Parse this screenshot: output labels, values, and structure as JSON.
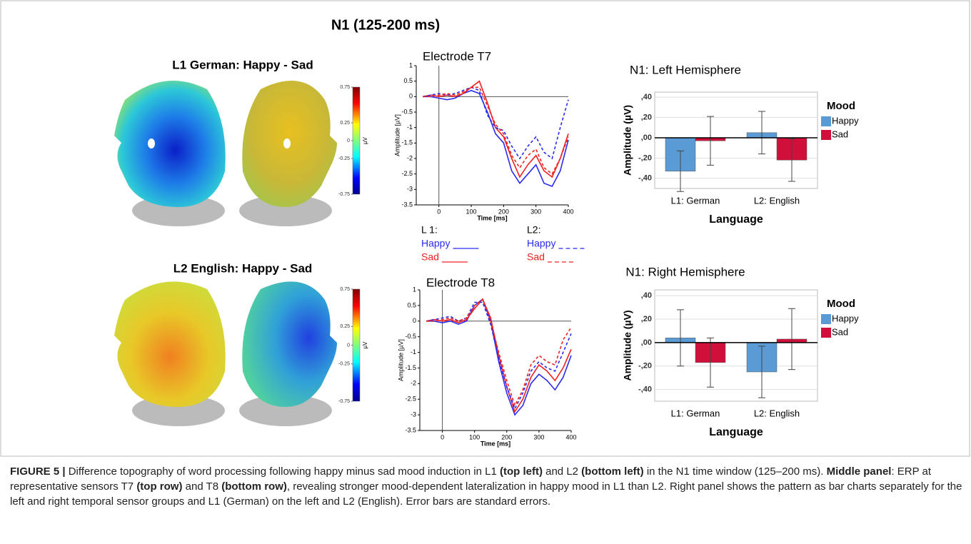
{
  "figure": {
    "title": "N1 (125-200 ms)",
    "caption": [
      {
        "text": "FIGURE 5 |",
        "bold": true
      },
      {
        "text": " Difference topography of word processing following happy minus sad mood induction in L1 ",
        "bold": false
      },
      {
        "text": "(top left)",
        "bold": true
      },
      {
        "text": " and L2 ",
        "bold": false
      },
      {
        "text": "(bottom left)",
        "bold": true
      },
      {
        "text": " in the N1 time window (125–200 ms). ",
        "bold": false
      },
      {
        "text": "Middle panel",
        "bold": true
      },
      {
        "text": ": ERP at representative sensors T7 ",
        "bold": false
      },
      {
        "text": "(top row)",
        "bold": true
      },
      {
        "text": " and T8 ",
        "bold": false
      },
      {
        "text": "(bottom row)",
        "bold": true
      },
      {
        "text": ", revealing stronger mood-dependent lateralization in happy mood in L1 than L2. Right panel shows the pattern as bar charts separately for the left and right temporal sensor groups and L1 (German) on the left and L2 (English). Error bars are standard errors.",
        "bold": false
      }
    ]
  },
  "chart_data": [
    {
      "type": "topography",
      "title": "L1 German: Happy - Sad",
      "colorbar_label": "µV",
      "clim": [
        -0.75,
        0.75
      ],
      "cticks": [
        0.75,
        0.25,
        0,
        -0.25,
        -0.75
      ]
    },
    {
      "type": "topography",
      "title": "L2 English: Happy - Sad",
      "colorbar_label": "µV",
      "clim": [
        -0.75,
        0.75
      ],
      "cticks": [
        0.75,
        0.25,
        0,
        -0.25,
        -0.75
      ]
    },
    {
      "type": "line",
      "title": "Electrode T7",
      "xlabel": "Time [ms]",
      "ylabel": "Amplitude [µV]",
      "x": [
        -50,
        -25,
        0,
        25,
        50,
        75,
        100,
        125,
        150,
        175,
        200,
        225,
        250,
        275,
        300,
        325,
        350,
        375,
        400
      ],
      "xlim": [
        -70,
        400
      ],
      "ylim": [
        -3.5,
        1
      ],
      "xticks": [
        0,
        100,
        200,
        300,
        400
      ],
      "yticks": [
        1,
        0.5,
        0,
        -0.5,
        -1,
        -1.5,
        -2,
        -2.5,
        -3,
        -3.5
      ],
      "series": [
        {
          "group": "L 1:",
          "name": "Happy",
          "color": "#2b2bf0",
          "dashed": false,
          "values": [
            0,
            0,
            -0.05,
            -0.1,
            -0.05,
            0.1,
            0.2,
            0.1,
            -0.5,
            -1.2,
            -1.5,
            -2.4,
            -2.8,
            -2.5,
            -2.2,
            -2.8,
            -2.9,
            -2.4,
            -1.4
          ]
        },
        {
          "group": "L 1:",
          "name": "Sad",
          "color": "#f02020",
          "dashed": false,
          "values": [
            0,
            0.05,
            0,
            0.05,
            0,
            0.1,
            0.3,
            0.5,
            -0.2,
            -1.0,
            -1.3,
            -2.0,
            -2.6,
            -2.2,
            -1.9,
            -2.4,
            -2.6,
            -2.0,
            -1.2
          ]
        },
        {
          "group": "L2:",
          "name": "Happy",
          "color": "#2b2bf0",
          "dashed": true,
          "values": [
            0,
            0.05,
            0.1,
            0.05,
            0.1,
            0.2,
            0.3,
            0.2,
            -0.6,
            -1.0,
            -1.1,
            -1.6,
            -2.0,
            -1.6,
            -1.3,
            -1.8,
            -2.0,
            -1.0,
            -0.1
          ]
        },
        {
          "group": "L2:",
          "name": "Sad",
          "color": "#f02020",
          "dashed": true,
          "values": [
            0,
            0,
            0.05,
            0.1,
            0.05,
            0.15,
            0.3,
            0.3,
            -0.3,
            -0.9,
            -1.2,
            -1.9,
            -2.3,
            -1.9,
            -1.7,
            -2.3,
            -2.5,
            -2.0,
            -1.3
          ]
        }
      ]
    },
    {
      "type": "line",
      "title": "Electrode T8",
      "xlabel": "Time [ms]",
      "ylabel": "Amplitude [µV]",
      "x": [
        -50,
        -25,
        0,
        25,
        50,
        75,
        100,
        125,
        150,
        175,
        200,
        225,
        250,
        275,
        300,
        325,
        350,
        375,
        400
      ],
      "xlim": [
        -70,
        400
      ],
      "ylim": [
        -3.5,
        1
      ],
      "xticks": [
        0,
        100,
        200,
        300,
        400
      ],
      "yticks": [
        1,
        0.5,
        0,
        -0.5,
        -1,
        -1.5,
        -2,
        -2.5,
        -3,
        -3.5
      ],
      "series": [
        {
          "color": "#2b2bf0",
          "dashed": false,
          "values": [
            0,
            0,
            -0.05,
            0,
            -0.1,
            0,
            0.5,
            0.7,
            0,
            -1.3,
            -2.3,
            -3.0,
            -2.7,
            -2.0,
            -1.7,
            -1.9,
            -2.2,
            -1.8,
            -1.1
          ]
        },
        {
          "color": "#f02020",
          "dashed": false,
          "values": [
            0,
            0.05,
            0,
            0.05,
            -0.05,
            0.05,
            0.4,
            0.7,
            0.1,
            -1.1,
            -2.1,
            -2.9,
            -2.5,
            -1.8,
            -1.4,
            -1.6,
            -1.9,
            -1.5,
            -0.9
          ]
        },
        {
          "color": "#2b2bf0",
          "dashed": true,
          "values": [
            0,
            0.05,
            0.1,
            0.15,
            0,
            0.1,
            0.6,
            0.6,
            -0.1,
            -1.2,
            -2.1,
            -2.8,
            -2.3,
            -1.6,
            -1.3,
            -1.5,
            -1.6,
            -1.0,
            -0.4
          ]
        },
        {
          "color": "#f02020",
          "dashed": true,
          "values": [
            0,
            0,
            0.05,
            0.1,
            0,
            0.1,
            0.5,
            0.7,
            0,
            -1.0,
            -1.9,
            -2.7,
            -2.2,
            -1.4,
            -1.1,
            -1.3,
            -1.4,
            -0.6,
            -0.2
          ]
        }
      ]
    },
    {
      "type": "bar",
      "title": "N1: Left Hemisphere",
      "xlabel": "Language",
      "ylabel": "Amplitude (µV)",
      "categories": [
        "L1: German",
        "L2: English"
      ],
      "legend_title": "Mood",
      "ylim": [
        -0.5,
        0.45
      ],
      "grid": true,
      "yticks": [
        {
          "value": 0.4,
          "label": ",40"
        },
        {
          "value": 0.2,
          "label": ",20"
        },
        {
          "value": 0,
          "label": ",00"
        },
        {
          "value": -0.2,
          "label": "-,20"
        },
        {
          "value": -0.4,
          "label": "-,40"
        }
      ],
      "series": [
        {
          "name": "Happy",
          "color": "#5b9bd5",
          "values": [
            -0.33,
            0.05
          ],
          "errors": [
            0.2,
            0.21
          ]
        },
        {
          "name": "Sad",
          "color": "#d0103a",
          "values": [
            -0.03,
            -0.22
          ],
          "errors": [
            0.24,
            0.21
          ]
        }
      ]
    },
    {
      "type": "bar",
      "title": "N1: Right Hemisphere",
      "xlabel": "Language",
      "ylabel": "Amplitude (µV)",
      "categories": [
        "L1: German",
        "L2: English"
      ],
      "legend_title": "Mood",
      "ylim": [
        -0.5,
        0.45
      ],
      "grid": true,
      "yticks": [
        {
          "value": 0.4,
          "label": ",40"
        },
        {
          "value": 0.2,
          "label": ",20"
        },
        {
          "value": 0,
          "label": ",00"
        },
        {
          "value": -0.2,
          "label": "-,20"
        },
        {
          "value": -0.4,
          "label": "-,40"
        }
      ],
      "series": [
        {
          "name": "Happy",
          "color": "#5b9bd5",
          "values": [
            0.04,
            -0.25
          ],
          "errors": [
            0.24,
            0.22
          ]
        },
        {
          "name": "Sad",
          "color": "#d0103a",
          "values": [
            -0.17,
            0.03
          ],
          "errors": [
            0.21,
            0.26
          ]
        }
      ]
    }
  ]
}
